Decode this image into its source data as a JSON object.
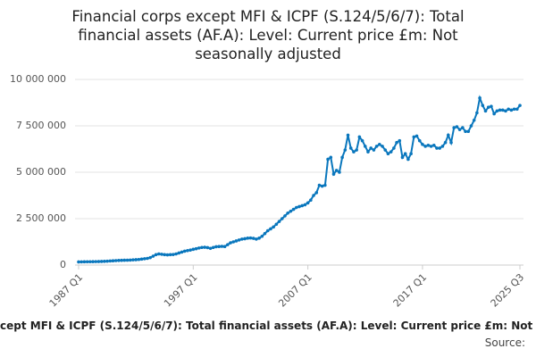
{
  "chart_data": {
    "type": "line",
    "title": "Financial corps except MFI & ICPF (S.124/5/6/7): Total financial assets (AF.A): Level: Current price £m: Not seasonally adjusted",
    "caption": "cept MFI & ICPF (S.124/5/6/7): Total financial assets (AF.A): Level: Current price £m: Not",
    "source": "Source:",
    "categories": [
      "1987 Q1",
      null,
      null,
      null,
      null,
      null,
      null,
      null,
      null,
      null,
      null,
      null,
      null,
      null,
      null,
      null,
      null,
      null,
      null,
      null,
      null,
      null,
      null,
      null,
      null,
      null,
      null,
      null,
      null,
      null,
      null,
      null,
      null,
      null,
      null,
      null,
      null,
      null,
      null,
      null,
      "1997 Q1",
      null,
      null,
      null,
      null,
      null,
      null,
      null,
      null,
      null,
      null,
      null,
      null,
      null,
      null,
      null,
      null,
      null,
      null,
      null,
      null,
      null,
      null,
      null,
      null,
      null,
      null,
      null,
      null,
      null,
      null,
      null,
      null,
      null,
      null,
      null,
      null,
      null,
      null,
      null,
      "2007 Q1",
      null,
      null,
      null,
      null,
      null,
      null,
      null,
      null,
      null,
      null,
      null,
      null,
      null,
      null,
      null,
      null,
      null,
      null,
      null,
      null,
      null,
      null,
      null,
      null,
      null,
      null,
      null,
      null,
      null,
      null,
      null,
      null,
      null,
      null,
      null,
      null,
      null,
      null,
      null,
      "2017 Q1",
      null,
      null,
      null,
      null,
      null,
      null,
      null,
      null,
      null,
      null,
      null,
      null,
      null,
      null,
      null,
      null,
      null,
      null,
      null,
      null,
      null,
      null,
      null,
      null,
      null,
      null,
      null,
      null,
      null,
      null,
      null,
      null,
      null,
      "2025 Q3"
    ],
    "series": [
      {
        "color": "#0a77bd",
        "values": [
          170000,
          172000,
          175000,
          178000,
          180000,
          183000,
          186000,
          190000,
          195000,
          200000,
          210000,
          220000,
          230000,
          240000,
          250000,
          255000,
          260000,
          265000,
          270000,
          280000,
          290000,
          300000,
          320000,
          340000,
          360000,
          400000,
          480000,
          560000,
          600000,
          580000,
          560000,
          550000,
          560000,
          570000,
          600000,
          650000,
          700000,
          750000,
          780000,
          810000,
          850000,
          880000,
          920000,
          950000,
          960000,
          940000,
          900000,
          950000,
          990000,
          1000000,
          1010000,
          1000000,
          1100000,
          1200000,
          1250000,
          1300000,
          1350000,
          1400000,
          1420000,
          1450000,
          1460000,
          1440000,
          1400000,
          1450000,
          1550000,
          1700000,
          1850000,
          1950000,
          2050000,
          2200000,
          2350000,
          2500000,
          2650000,
          2800000,
          2900000,
          3000000,
          3100000,
          3150000,
          3200000,
          3250000,
          3350000,
          3500000,
          3750000,
          3900000,
          4300000,
          4250000,
          4300000,
          5700000,
          5800000,
          4900000,
          5100000,
          5000000,
          5800000,
          6200000,
          7000000,
          6300000,
          6100000,
          6200000,
          6900000,
          6700000,
          6400000,
          6100000,
          6300000,
          6200000,
          6400000,
          6500000,
          6400000,
          6200000,
          6000000,
          6100000,
          6300000,
          6600000,
          6700000,
          5800000,
          6000000,
          5700000,
          6000000,
          6900000,
          6950000,
          6700000,
          6500000,
          6400000,
          6450000,
          6400000,
          6450000,
          6300000,
          6300000,
          6400000,
          6600000,
          7000000,
          6600000,
          7400000,
          7450000,
          7300000,
          7400000,
          7200000,
          7200000,
          7500000,
          7800000,
          8200000,
          9000000,
          8600000,
          8300000,
          8500000,
          8550000,
          8150000,
          8300000,
          8350000,
          8350000,
          8300000,
          8400000,
          8350000,
          8400000,
          8400000,
          8600000
        ]
      }
    ],
    "ylim": [
      0,
      10000000
    ],
    "yticks": [
      0,
      {
        "value": 2500000,
        "label": "2 500 000"
      },
      {
        "value": 5000000,
        "label": "5 000 000"
      },
      {
        "value": 7500000,
        "label": "7 500 000"
      },
      {
        "value": 10000000,
        "label": "10 000 000"
      }
    ],
    "grid": true
  }
}
